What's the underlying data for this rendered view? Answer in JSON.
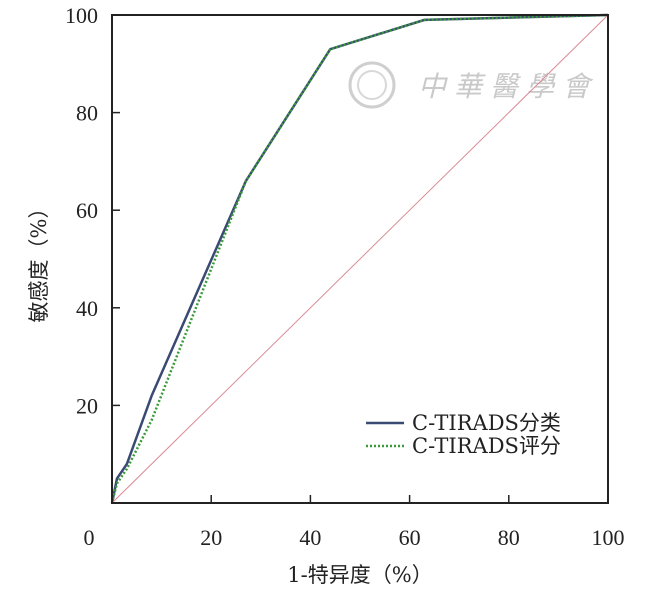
{
  "chart_data": {
    "type": "line",
    "xlabel": "1-特异度（%）",
    "ylabel": "敏感度（%）",
    "xlim": [
      0,
      100
    ],
    "ylim": [
      0,
      100
    ],
    "x_ticks": [
      "0",
      "20",
      "40",
      "60",
      "80",
      "100"
    ],
    "y_ticks": [
      "20",
      "40",
      "60",
      "80",
      "100"
    ],
    "grid": false,
    "legend_position": "bottom-right",
    "watermark": "中華醫學會",
    "series": [
      {
        "name": "C-TIRADS分类",
        "style": "solid",
        "color": "#3a4a73",
        "points": [
          [
            0,
            0
          ],
          [
            1,
            5
          ],
          [
            3,
            8
          ],
          [
            8,
            22
          ],
          [
            27,
            66
          ],
          [
            44,
            93
          ],
          [
            63,
            99
          ],
          [
            100,
            100
          ]
        ]
      },
      {
        "name": "C-TIRADS评分",
        "style": "dotted",
        "color": "#3a9a3a",
        "points": [
          [
            0,
            0
          ],
          [
            1,
            4
          ],
          [
            3,
            7
          ],
          [
            8,
            17
          ],
          [
            27,
            66
          ],
          [
            44,
            93
          ],
          [
            63,
            99
          ],
          [
            100,
            100
          ]
        ]
      },
      {
        "name": "",
        "style": "reference",
        "color": "#d98c96",
        "points": [
          [
            0,
            0
          ],
          [
            100,
            100
          ]
        ]
      }
    ]
  }
}
